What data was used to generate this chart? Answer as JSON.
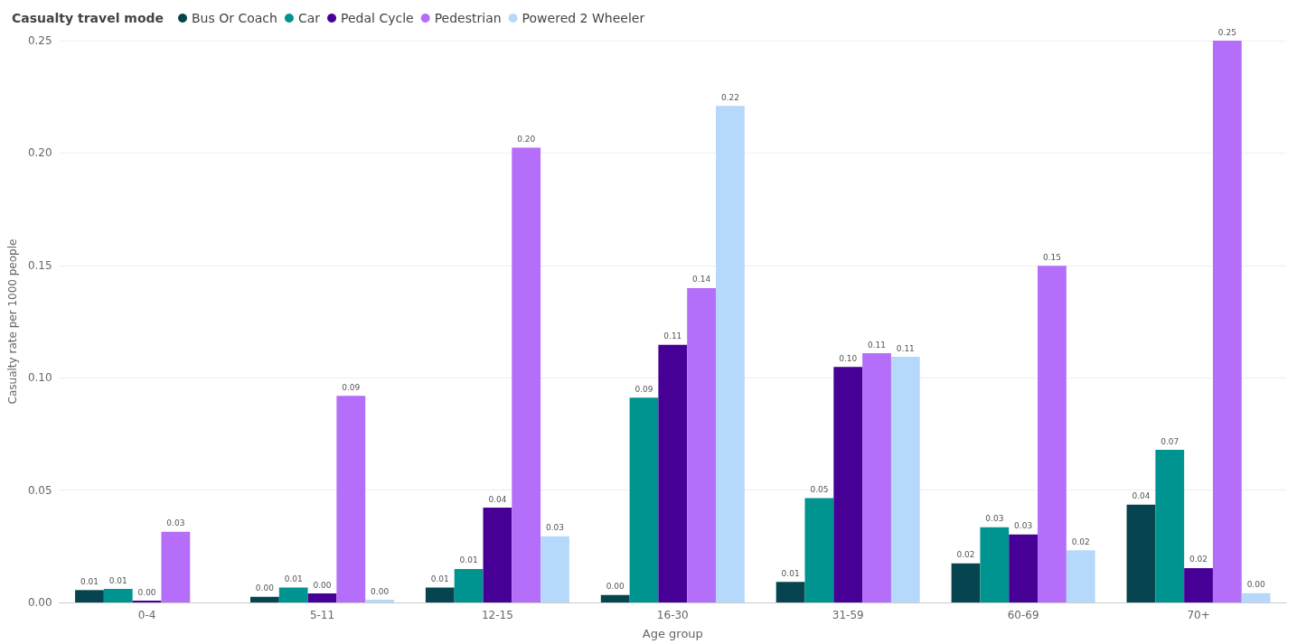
{
  "chart_data": {
    "type": "bar",
    "legend_title": "Casualty travel mode",
    "xlabel": "Age group",
    "ylabel": "Casualty rate per 1000 people",
    "categories": [
      "0-4",
      "5-11",
      "12-15",
      "16-30",
      "31-59",
      "60-69",
      "70+"
    ],
    "series": [
      {
        "name": "Bus Or Coach",
        "color": "#06454f",
        "values": [
          0.0055,
          0.0025,
          0.0066,
          0.0033,
          0.0091,
          0.0174,
          0.0435
        ],
        "value_labels": [
          "0.01",
          "0.00",
          "0.01",
          "0.00",
          "0.01",
          "0.02",
          "0.04"
        ]
      },
      {
        "name": "Car",
        "color": "#009490",
        "values": [
          0.006,
          0.0066,
          0.0149,
          0.0911,
          0.0464,
          0.0335,
          0.0679
        ],
        "value_labels": [
          "0.01",
          "0.01",
          "0.01",
          "0.09",
          "0.05",
          "0.03",
          "0.07"
        ]
      },
      {
        "name": "Pedal Cycle",
        "color": "#470096",
        "values": [
          0.0008,
          0.004,
          0.0422,
          0.1147,
          0.1048,
          0.0302,
          0.0153
        ],
        "value_labels": [
          "0.00",
          "0.00",
          "0.04",
          "0.11",
          "0.10",
          "0.03",
          "0.02"
        ]
      },
      {
        "name": "Pedestrian",
        "color": "#b46ef9",
        "values": [
          0.0315,
          0.0919,
          0.2024,
          0.1399,
          0.1109,
          0.1498,
          0.25
        ],
        "value_labels": [
          "0.03",
          "0.09",
          "0.20",
          "0.14",
          "0.11",
          "0.15",
          "0.25"
        ]
      },
      {
        "name": "Powered 2 Wheeler",
        "color": "#b6d9fb",
        "values": [
          null,
          0.0012,
          0.0294,
          0.221,
          0.1093,
          0.0232,
          0.0041
        ],
        "value_labels": [
          null,
          "0.00",
          "0.03",
          "0.22",
          "0.11",
          "0.02",
          "0.00"
        ]
      }
    ],
    "ylim": [
      0,
      0.25
    ],
    "yticks": [
      {
        "value": 0,
        "label": "0.00"
      },
      {
        "value": 0.05,
        "label": "0.05"
      },
      {
        "value": 0.1,
        "label": "0.10"
      },
      {
        "value": 0.15,
        "label": "0.15"
      },
      {
        "value": 0.2,
        "label": "0.20"
      },
      {
        "value": 0.25,
        "label": "0.25"
      }
    ],
    "grid": "y",
    "legend": "top left"
  }
}
